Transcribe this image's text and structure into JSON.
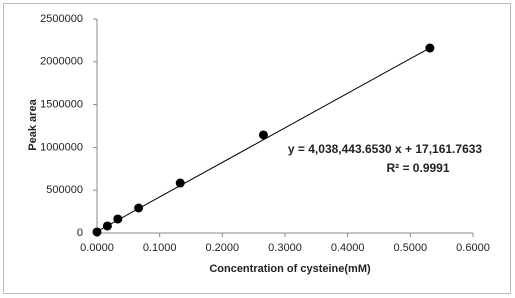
{
  "chart_data": {
    "type": "scatter",
    "y_label": "Peak area",
    "x_label": "Concentration of cysteine(mM)",
    "annotations": [
      "y = 4,038,443.6530 x + 17,161.7633",
      "R² = 0.9991"
    ],
    "series": [
      {
        "color": "#000000",
        "x": [
          0,
          0.0166,
          0.0332,
          0.0664,
          0.1328,
          0.2656,
          0.5312
        ],
        "values": [
          12000,
          82000,
          164000,
          292000,
          584000,
          1145000,
          2161000
        ]
      }
    ],
    "trendline": {
      "color": "#000000",
      "x": [
        0,
        0.5312
      ],
      "values": [
        17162,
        2162402
      ]
    },
    "xlim": [
      0,
      0.6
    ],
    "xticks": [
      {
        "value": 0,
        "label": "0.0000"
      },
      {
        "value": 0.1,
        "label": "0.1000"
      },
      {
        "value": 0.2,
        "label": "0.2000"
      },
      {
        "value": 0.3,
        "label": "0.3000"
      },
      {
        "value": 0.4,
        "label": "0.4000"
      },
      {
        "value": 0.5,
        "label": "0.5000"
      },
      {
        "value": 0.6,
        "label": "0.6000"
      }
    ],
    "ylim": [
      0,
      2500000
    ],
    "yticks": [
      0,
      500000,
      1000000,
      1500000,
      2000000,
      2500000
    ],
    "grid": false
  }
}
